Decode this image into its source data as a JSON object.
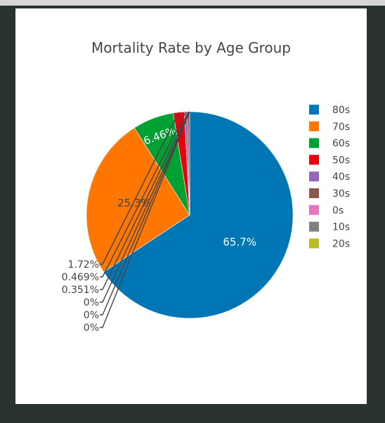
{
  "chart_data": {
    "type": "pie",
    "title": "Mortality Rate by Age Group",
    "slices": [
      {
        "label": "80s",
        "percent": 65.7,
        "text": "65.7%",
        "color": "#0077b4",
        "text_color": "#ffffff",
        "text_pos": "inside"
      },
      {
        "label": "70s",
        "percent": 25.3,
        "text": "25.3%",
        "color": "#ff7700",
        "text_color": "#444444",
        "text_pos": "inside"
      },
      {
        "label": "60s",
        "percent": 6.46,
        "text": "6.46%",
        "color": "#00a032",
        "text_color": "#ffffff",
        "text_pos": "inside-rotated"
      },
      {
        "label": "50s",
        "percent": 1.72,
        "text": "1.72%",
        "color": "#e8000d",
        "text_color": "#444444",
        "text_pos": "outside"
      },
      {
        "label": "40s",
        "percent": 0.469,
        "text": "0.469%",
        "color": "#9467bd",
        "text_color": "#444444",
        "text_pos": "outside"
      },
      {
        "label": "30s",
        "percent": 0.351,
        "text": "0.351%",
        "color": "#8c564b",
        "text_color": "#444444",
        "text_pos": "outside"
      },
      {
        "label": "0s",
        "percent": 0,
        "text": "0%",
        "color": "#e377c2",
        "text_color": "#444444",
        "text_pos": "outside"
      },
      {
        "label": "10s",
        "percent": 0,
        "text": "0%",
        "color": "#7f7f7f",
        "text_color": "#444444",
        "text_pos": "outside"
      },
      {
        "label": "20s",
        "percent": 0,
        "text": "0%",
        "color": "#bcbd22",
        "text_color": "#444444",
        "text_pos": "outside"
      }
    ],
    "legend_position": "right",
    "direction": "clockwise",
    "start": "top"
  }
}
